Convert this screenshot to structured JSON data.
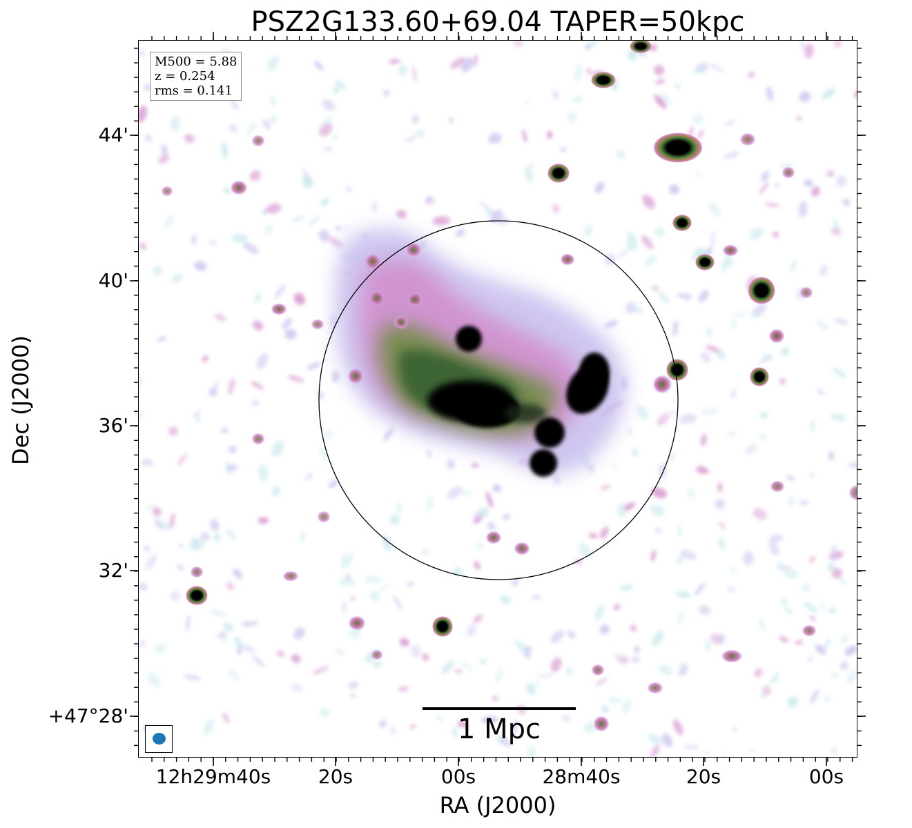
{
  "title": "PSZ2G133.60+69.04 TAPER=50kpc",
  "axes": {
    "xlabel": "RA (J2000)",
    "ylabel": "Dec (J2000)",
    "x_ticks": [
      "12h29m40s",
      "20s",
      "00s",
      "28m40s",
      "20s",
      "00s"
    ],
    "y_ticks": [
      "44'",
      "40'",
      "36'",
      "32'",
      "+47°28'"
    ]
  },
  "info": {
    "m500": "M500 = 5.88",
    "z": "z = 0.254",
    "rms": "rms = 0.141"
  },
  "scale_bar": {
    "label": "1 Mpc"
  },
  "colors": {
    "beam": "#1f77b4",
    "colormap": [
      "#ffffff",
      "#c8e8ec",
      "#c9c0ee",
      "#d18ccb",
      "#b87a6e",
      "#6b8b3a",
      "#2f5a2f",
      "#000000"
    ]
  }
}
